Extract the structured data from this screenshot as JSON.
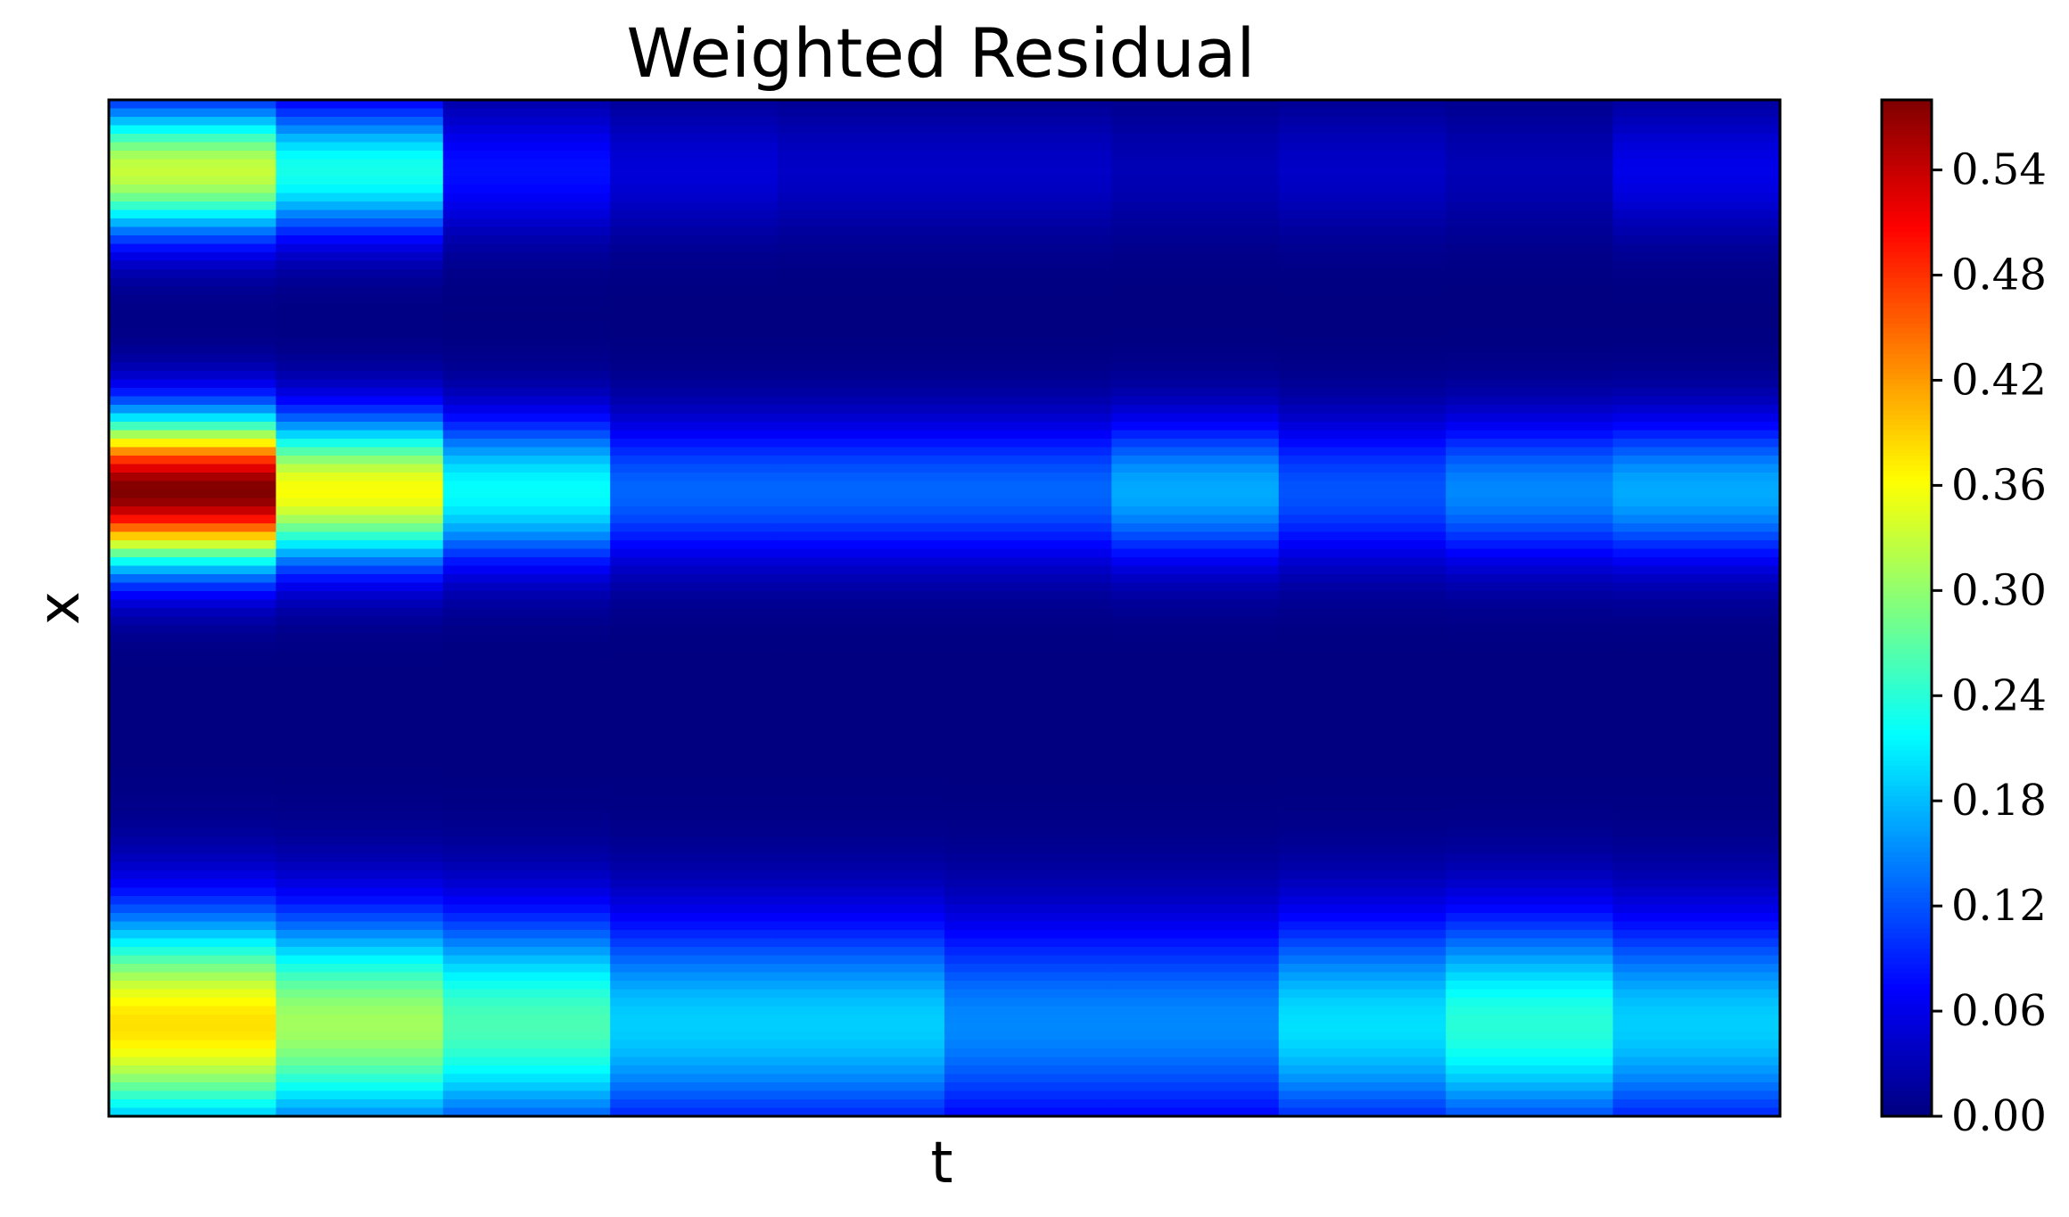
{
  "chart_data": {
    "type": "heatmap",
    "title": "Weighted Residual",
    "xlabel": "t",
    "ylabel": "x",
    "x_ticks": [],
    "y_ticks": [],
    "colormap": "jet",
    "colorbar": {
      "ticks": [
        "0.00",
        "0.06",
        "0.12",
        "0.18",
        "0.24",
        "0.30",
        "0.36",
        "0.42",
        "0.48",
        "0.54"
      ],
      "range": [
        0,
        0.58
      ]
    },
    "rows_top_to_bottom_note_removed": "",
    "columns": 10,
    "bands": [
      {
        "y": 0.93,
        "sigma": 0.045,
        "amplitudes": [
          0.33,
          0.23,
          0.08,
          0.05,
          0.04,
          0.04,
          0.03,
          0.04,
          0.03,
          0.06
        ]
      },
      {
        "y": 0.615,
        "sigma": 0.05,
        "amplitudes": [
          0.58,
          0.36,
          0.22,
          0.13,
          0.13,
          0.13,
          0.17,
          0.12,
          0.15,
          0.17
        ]
      },
      {
        "y": 0.09,
        "sigma": 0.075,
        "amplitudes": [
          0.38,
          0.31,
          0.26,
          0.19,
          0.19,
          0.15,
          0.15,
          0.2,
          0.24,
          0.19
        ]
      }
    ],
    "grid": false
  }
}
